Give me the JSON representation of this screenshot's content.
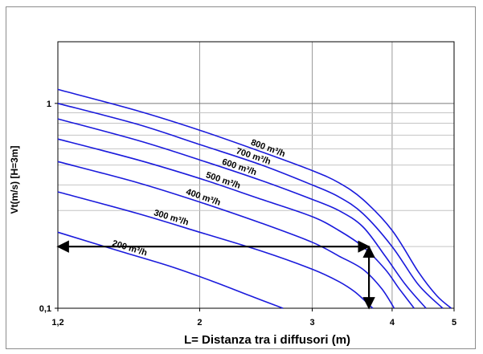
{
  "chart_data": {
    "type": "line",
    "title": "",
    "xlabel": "L= Distanza tra i diffusori (m)",
    "ylabel": "Vt(m/s) [H=3m]",
    "xscale": "log",
    "yscale": "log",
    "xlim": [
      1.2,
      5
    ],
    "ylim": [
      0.1,
      2
    ],
    "grid": true,
    "x_ticks": [
      {
        "value": 1.2,
        "label": "1,2"
      },
      {
        "value": 2,
        "label": "2"
      },
      {
        "value": 3,
        "label": "3"
      },
      {
        "value": 4,
        "label": "4"
      },
      {
        "value": 5,
        "label": "5"
      }
    ],
    "y_ticks": [
      {
        "value": 0.1,
        "label": "0,1"
      },
      {
        "value": 1,
        "label": "1"
      }
    ],
    "line_color": "#1a1adc",
    "series": [
      {
        "name": "800 m³/h",
        "x": [
          1.2,
          1.6,
          2.0,
          2.5,
          3.0,
          3.3,
          3.6,
          4.0,
          4.4,
          4.7,
          4.95
        ],
        "y": [
          1.17,
          0.92,
          0.74,
          0.58,
          0.47,
          0.41,
          0.34,
          0.24,
          0.15,
          0.115,
          0.1
        ]
      },
      {
        "name": "700 m³/h",
        "x": [
          1.2,
          1.6,
          2.0,
          2.5,
          3.0,
          3.3,
          3.6,
          4.0,
          4.4,
          4.8
        ],
        "y": [
          1.0,
          0.79,
          0.63,
          0.5,
          0.4,
          0.35,
          0.29,
          0.2,
          0.13,
          0.1
        ]
      },
      {
        "name": "600 m³/h",
        "x": [
          1.2,
          1.6,
          2.0,
          2.5,
          3.0,
          3.3,
          3.6,
          3.9,
          4.2,
          4.52
        ],
        "y": [
          0.84,
          0.66,
          0.53,
          0.42,
          0.34,
          0.3,
          0.25,
          0.18,
          0.13,
          0.1
        ]
      },
      {
        "name": "500 m³/h",
        "x": [
          1.2,
          1.6,
          2.0,
          2.5,
          3.0,
          3.3,
          3.6,
          3.9,
          4.1,
          4.33
        ],
        "y": [
          0.67,
          0.53,
          0.43,
          0.34,
          0.28,
          0.24,
          0.2,
          0.155,
          0.125,
          0.1
        ]
      },
      {
        "name": "400 m³/h",
        "x": [
          1.2,
          1.6,
          2.0,
          2.5,
          3.0,
          3.3,
          3.6,
          3.85,
          4.03
        ],
        "y": [
          0.52,
          0.41,
          0.33,
          0.26,
          0.21,
          0.18,
          0.155,
          0.125,
          0.1
        ]
      },
      {
        "name": "300 m³/h",
        "x": [
          1.2,
          1.6,
          2.0,
          2.5,
          3.0,
          3.3,
          3.5,
          3.73
        ],
        "y": [
          0.37,
          0.29,
          0.235,
          0.19,
          0.155,
          0.135,
          0.12,
          0.1
        ]
      },
      {
        "name": "200 m³/h",
        "x": [
          1.2,
          1.5,
          1.8,
          2.1,
          2.4,
          2.7
        ],
        "y": [
          0.235,
          0.19,
          0.16,
          0.135,
          0.115,
          0.1
        ]
      }
    ],
    "annotations": [
      {
        "type": "double-arrow",
        "from": {
          "x": 1.2,
          "y": 0.2
        },
        "to": {
          "x": 3.68,
          "y": 0.2
        }
      },
      {
        "type": "double-arrow",
        "from": {
          "x": 3.68,
          "y": 0.2
        },
        "to": {
          "x": 3.68,
          "y": 0.1
        }
      }
    ]
  }
}
